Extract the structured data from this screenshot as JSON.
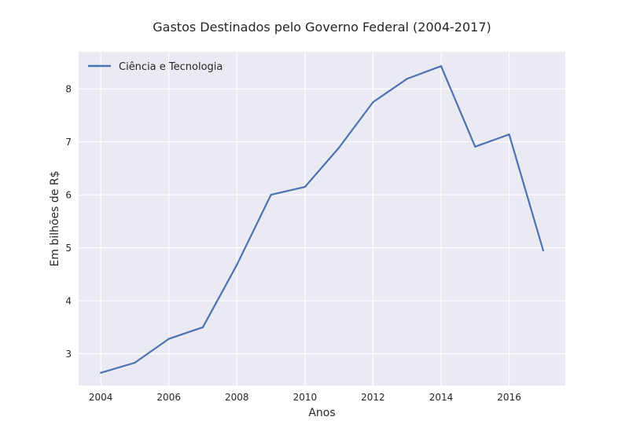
{
  "chart_data": {
    "type": "line",
    "title": "Gastos Destinados pelo Governo Federal (2004-2017)",
    "xlabel": "Anos",
    "ylabel": "Em bilhões de R$",
    "xlim": [
      2003.35,
      2017.65
    ],
    "ylim": [
      2.4,
      8.7
    ],
    "x_ticks": [
      2004,
      2006,
      2008,
      2010,
      2012,
      2014,
      2016
    ],
    "x_tick_labels": [
      "2004",
      "2006",
      "2008",
      "2010",
      "2012",
      "2014",
      "2016"
    ],
    "y_ticks": [
      3,
      4,
      5,
      6,
      7,
      8
    ],
    "y_tick_labels": [
      "3",
      "4",
      "5",
      "6",
      "7",
      "8"
    ],
    "grid": true,
    "legend": "top-left",
    "series": [
      {
        "name": "Ciência e Tecnologia",
        "color": "#4c72b0",
        "x": [
          2004,
          2005,
          2006,
          2007,
          2008,
          2009,
          2010,
          2011,
          2012,
          2013,
          2014,
          2015,
          2016,
          2017
        ],
        "y": [
          2.64,
          2.83,
          3.28,
          3.5,
          4.68,
          6.0,
          6.15,
          6.89,
          7.75,
          8.19,
          8.43,
          6.91,
          7.14,
          4.95
        ]
      }
    ]
  },
  "colors": {
    "plot_background": "#eaeaf2",
    "grid": "#ffffff",
    "series": "#4c72b0"
  }
}
